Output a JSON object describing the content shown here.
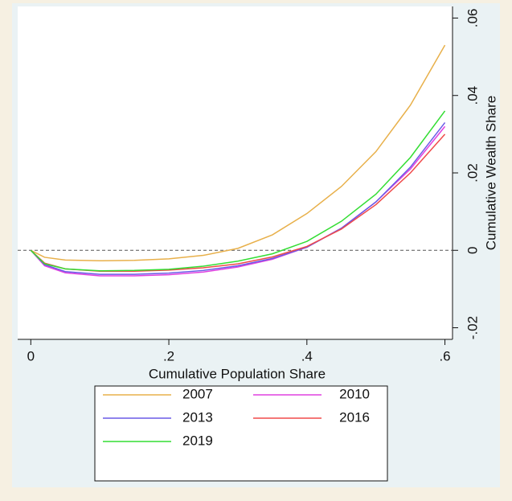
{
  "chart_data": {
    "type": "line",
    "xlabel": "Cumulative Population Share",
    "ylabel": "Cumulative Wealth Share",
    "x": [
      0,
      0.02,
      0.05,
      0.1,
      0.15,
      0.2,
      0.25,
      0.3,
      0.35,
      0.4,
      0.45,
      0.5,
      0.55,
      0.6
    ],
    "series": [
      {
        "name": "2007",
        "color": "#e8b04a",
        "values": [
          0,
          -0.0018,
          -0.0025,
          -0.0027,
          -0.0026,
          -0.0022,
          -0.0013,
          0.0005,
          0.004,
          0.0095,
          0.0165,
          0.0255,
          0.0375,
          0.053
        ]
      },
      {
        "name": "2010",
        "color": "#e040e0",
        "values": [
          0,
          -0.004,
          -0.0058,
          -0.0066,
          -0.0066,
          -0.0063,
          -0.0056,
          -0.0043,
          -0.0023,
          0.0008,
          0.0057,
          0.0125,
          0.021,
          0.032
        ]
      },
      {
        "name": "2013",
        "color": "#6a5ae6",
        "values": [
          0,
          -0.0037,
          -0.0055,
          -0.0062,
          -0.0062,
          -0.0059,
          -0.0052,
          -0.004,
          -0.0021,
          0.0008,
          0.0057,
          0.0125,
          0.0215,
          0.033
        ]
      },
      {
        "name": "2016",
        "color": "#f04a4a",
        "values": [
          0,
          -0.0033,
          -0.0048,
          -0.0054,
          -0.0054,
          -0.0051,
          -0.0045,
          -0.0035,
          -0.0017,
          0.001,
          0.0055,
          0.0118,
          0.02,
          0.03
        ]
      },
      {
        "name": "2019",
        "color": "#33dd33",
        "values": [
          0,
          -0.0035,
          -0.0048,
          -0.0053,
          -0.0052,
          -0.0049,
          -0.0041,
          -0.0028,
          -0.0009,
          0.0023,
          0.0075,
          0.0145,
          0.024,
          0.036
        ]
      }
    ],
    "xlim": [
      -0.019,
      0.611
    ],
    "ylim": [
      -0.023,
      0.063
    ],
    "xticks": [
      0,
      {
        "value": 0.2,
        "label": ".2"
      },
      {
        "value": 0.4,
        "label": ".4"
      },
      {
        "value": 0.6,
        "label": ".6"
      }
    ],
    "yticks": [
      {
        "value": -0.02,
        "label": "-.02"
      },
      0,
      {
        "value": 0.02,
        "label": ".02"
      },
      {
        "value": 0.04,
        "label": ".04"
      },
      {
        "value": 0.06,
        "label": ".06"
      }
    ],
    "hline": 0,
    "yaxis_side": "right"
  }
}
